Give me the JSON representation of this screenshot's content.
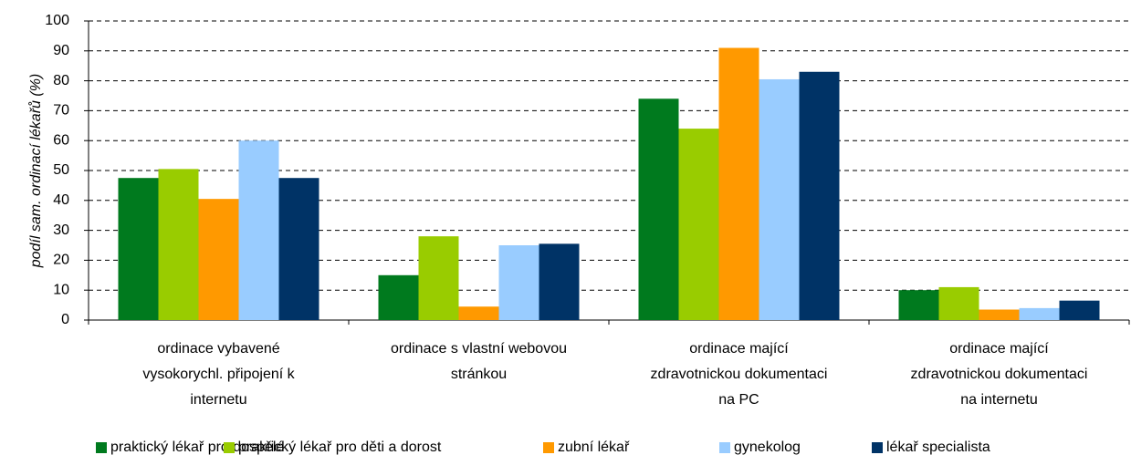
{
  "chart_data": {
    "type": "bar",
    "y_label": "podíl sam. ordinací lékařů (%)",
    "categories": [
      [
        "ordinace vybavené",
        "vysokorychl. připojení k",
        "internetu"
      ],
      [
        "ordinace s vlastní webovou",
        "stránkou"
      ],
      [
        "ordinace mající",
        "zdravotnickou dokumentaci",
        "na PC"
      ],
      [
        "ordinace mající",
        "zdravotnickou dokumentaci",
        "na internetu"
      ]
    ],
    "series": [
      {
        "name": "praktický lékař pro dospělé",
        "color": "#007a1e",
        "values": [
          47.5,
          15,
          74,
          10
        ]
      },
      {
        "name": "praktický lékař pro děti a dorost",
        "color": "#99cc00",
        "values": [
          50.5,
          28,
          64,
          11
        ]
      },
      {
        "name": "zubní lékař",
        "color": "#ff9900",
        "values": [
          40.5,
          4.5,
          91,
          3.5
        ]
      },
      {
        "name": "gynekolog",
        "color": "#99ccff",
        "values": [
          60,
          25,
          80.5,
          4
        ]
      },
      {
        "name": "lékař specialista",
        "color": "#003366",
        "values": [
          47.5,
          25.5,
          83,
          6.5
        ]
      }
    ],
    "ylim": [
      0,
      100
    ],
    "yticks": [
      0,
      10,
      20,
      30,
      40,
      50,
      60,
      70,
      80,
      90,
      100
    ],
    "grid": true,
    "legend": "bottom"
  }
}
